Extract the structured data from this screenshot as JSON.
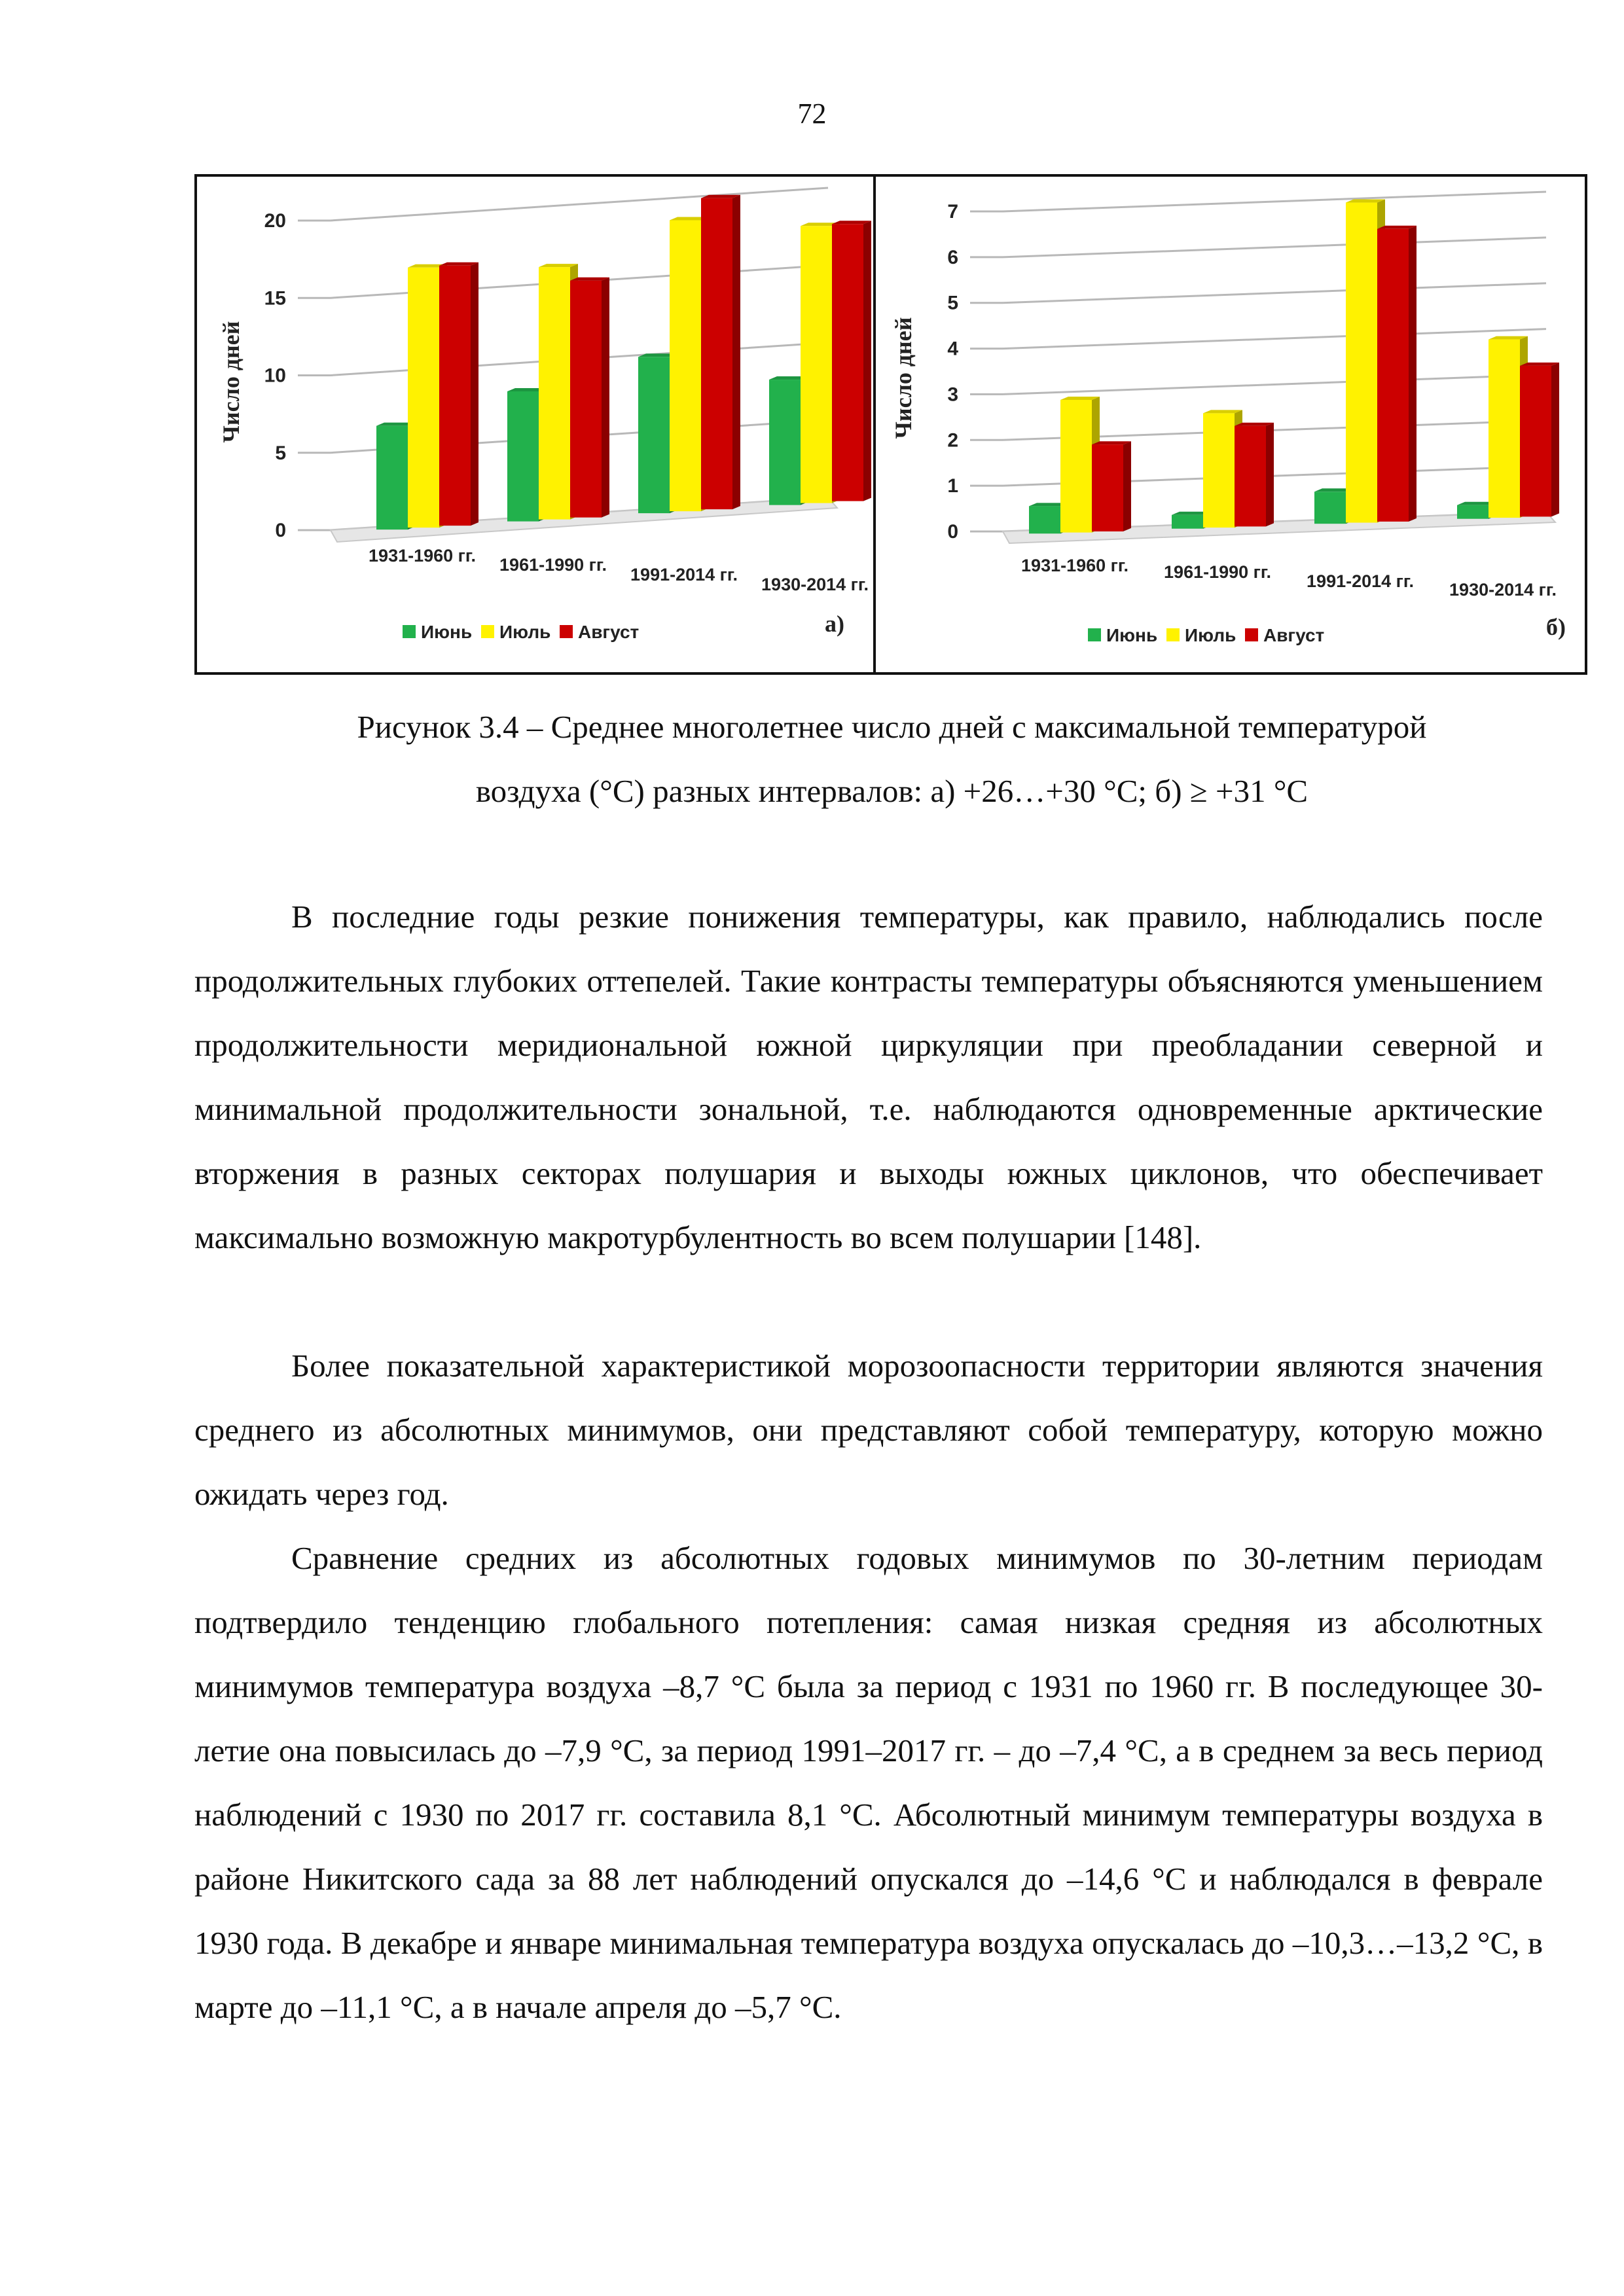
{
  "page": {
    "number": "72"
  },
  "figure": {
    "caption_line1": "Рисунок 3.4 – Среднее многолетнее число дней с максимальной температурой",
    "caption_line2": "воздуха (°С) разных интервалов: а) +26…+30 °С; б) ≥ +31 °С"
  },
  "chart_data": [
    {
      "type": "bar",
      "panel_label": "а)",
      "ylabel": "Число дней",
      "ylim": [
        0,
        20
      ],
      "yticks": [
        0,
        5,
        10,
        15,
        20
      ],
      "categories": [
        "1931-1960 гг.",
        "1961-1990 гг.",
        "1991-2014 гг.",
        "1930-2014 гг."
      ],
      "series": [
        {
          "name": "Июнь",
          "color": "#22b14c",
          "values": [
            6.7,
            8.4,
            10.1,
            8.1
          ]
        },
        {
          "name": "Июль",
          "color": "#fff200",
          "values": [
            16.8,
            16.3,
            18.8,
            17.9
          ]
        },
        {
          "name": "Август",
          "color": "#cc0000",
          "values": [
            16.8,
            15.3,
            20.1,
            17.9
          ]
        }
      ],
      "legend_position": "bottom",
      "grid": true
    },
    {
      "type": "bar",
      "panel_label": "б)",
      "ylabel": "Число дней",
      "ylim": [
        0,
        7
      ],
      "yticks": [
        0,
        1,
        2,
        3,
        4,
        5,
        6,
        7
      ],
      "categories": [
        "1931-1960 гг.",
        "1961-1990 гг.",
        "1991-2014 гг.",
        "1930-2014 гг."
      ],
      "series": [
        {
          "name": "Июнь",
          "color": "#22b14c",
          "values": [
            0.6,
            0.3,
            0.7,
            0.3
          ]
        },
        {
          "name": "Июль",
          "color": "#fff200",
          "values": [
            2.9,
            2.5,
            7.0,
            3.9
          ]
        },
        {
          "name": "Август",
          "color": "#cc0000",
          "values": [
            1.9,
            2.2,
            6.4,
            3.3
          ]
        }
      ],
      "legend_position": "bottom",
      "grid": true
    }
  ],
  "paragraphs": [
    "В последние годы резкие понижения температуры, как правило, наблюдались после продолжительных глубоких оттепелей. Такие контрасты температуры объясняются уменьшением продолжительности меридиональной южной циркуляции при преобладании северной и минимальной продолжительности зональной, т.е. наблюдаются одновременные арктические вторжения в разных секторах полушария и выходы южных циклонов, что обеспечивает максимально возможную макротурбулентность во всем полушарии [148].",
    "Более показательной характеристикой морозоопасности территории являются значения среднего из абсолютных минимумов, они представляют собой температуру, которую можно ожидать через год.",
    "Сравнение средних из абсолютных годовых минимумов по 30-летним периодам подтвердило тенденцию глобального потепления: самая низкая средняя из абсолютных минимумов температура воздуха –8,7 °С была за период с 1931 по 1960 гг. В последующее 30-летие она повысилась до –7,9 °С, за период 1991–2017 гг. – до –7,4 °С, а в среднем за весь период наблюдений с 1930 по 2017 гг. составила 8,1 °С. Абсолютный минимум температуры воздуха в районе Никитского сада за 88 лет наблюдений опускался до –14,6 °С и наблюдался в феврале 1930 года. В декабре и январе минимальная температура воздуха опускалась до –10,3…–13,2 °С, в марте до –11,1 °С, а в начале апреля до –5,7 °С."
  ]
}
